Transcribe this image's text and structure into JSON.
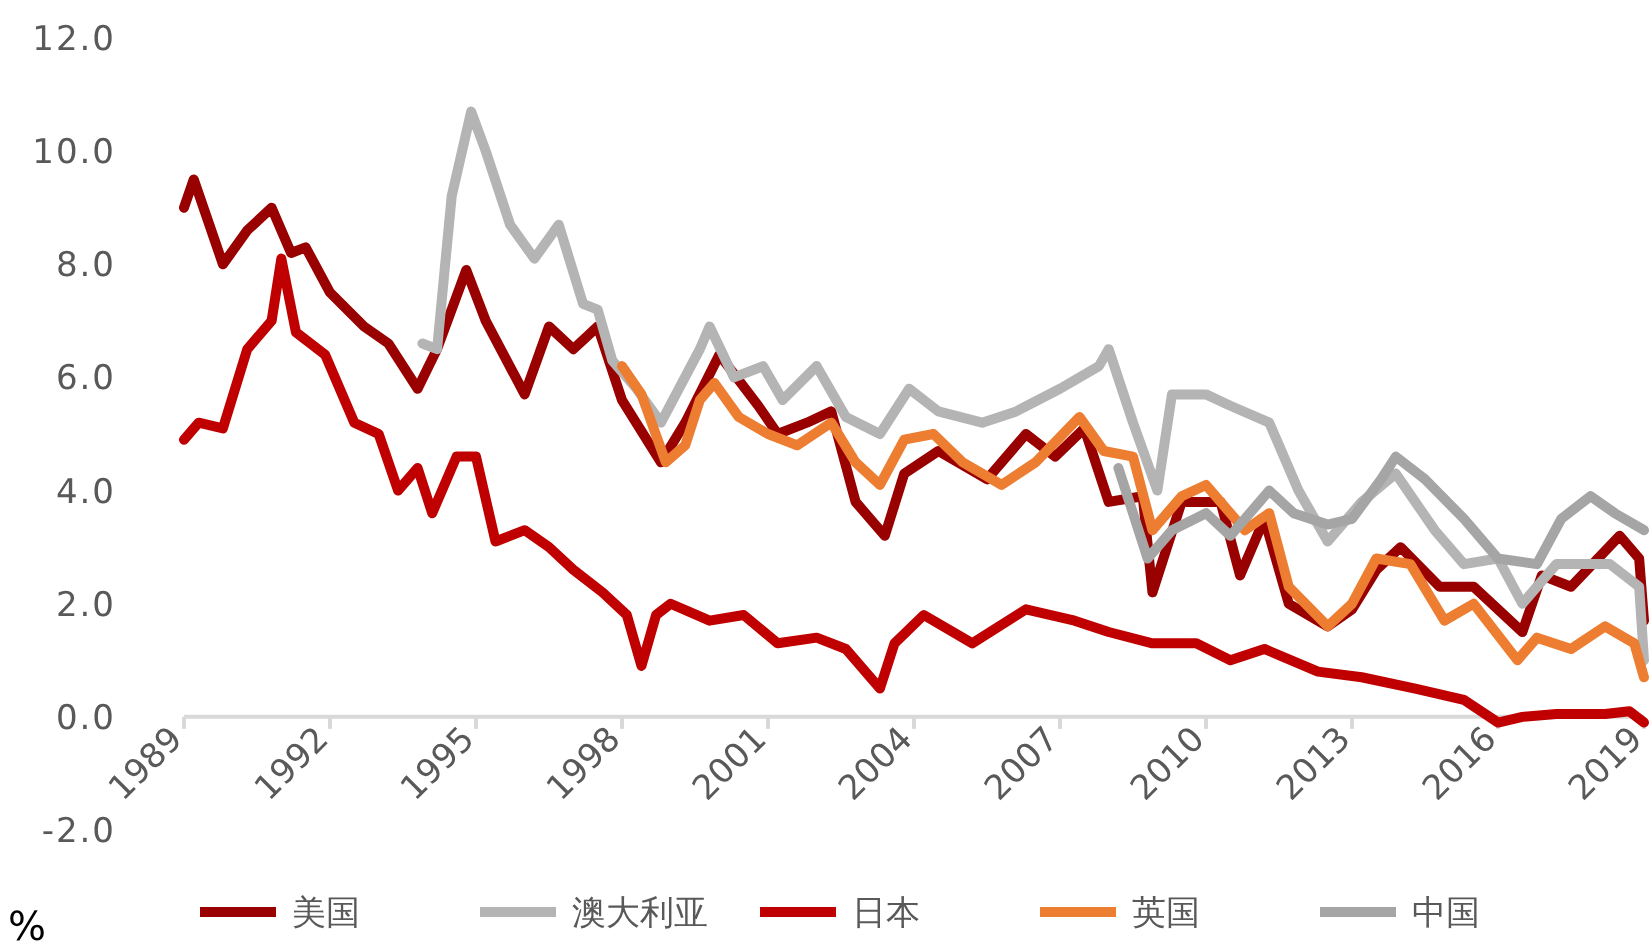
{
  "chart_data": {
    "type": "line",
    "ylabel": "%",
    "xlim": [
      1989,
      2019
    ],
    "ylim": [
      -2,
      12
    ],
    "xticks": [
      1989,
      1992,
      1995,
      1998,
      2001,
      2004,
      2007,
      2010,
      2013,
      2016,
      2019
    ],
    "yticks": [
      {
        "value": -2,
        "label": "-2.0"
      },
      {
        "value": 0,
        "label": "0.0"
      },
      {
        "value": 2,
        "label": "2.0"
      },
      {
        "value": 4,
        "label": "4.0"
      },
      {
        "value": 6,
        "label": "6.0"
      },
      {
        "value": 8,
        "label": "8.0"
      },
      {
        "value": 10,
        "label": "10.0"
      },
      {
        "value": 12,
        "label": "12.0"
      }
    ],
    "grid": false,
    "legend": "bottom",
    "marker": "none",
    "line_style": "solid",
    "series": [
      {
        "name": "美国",
        "color": "#990000",
        "x": [
          1989,
          1989.2,
          1989.8,
          1990.3,
          1990.8,
          1991.2,
          1991.5,
          1992,
          1992.7,
          1993.2,
          1993.8,
          1994.2,
          1994.8,
          1995.2,
          1996,
          1996.5,
          1997,
          1997.5,
          1998,
          1998.8,
          1999.3,
          2000,
          2000.8,
          2001.2,
          2001.8,
          2002.3,
          2002.8,
          2003.4,
          2003.8,
          2004.5,
          2005.5,
          2006.3,
          2006.9,
          2007.5,
          2008,
          2008.7,
          2008.9,
          2009.5,
          2010.3,
          2010.7,
          2011.2,
          2011.7,
          2012.5,
          2013,
          2013.5,
          2014,
          2014.8,
          2015.5,
          2016.5,
          2016.9,
          2017.5,
          2018.5,
          2018.9,
          2019
        ],
        "values": [
          9.0,
          9.5,
          8.0,
          8.6,
          9.0,
          8.2,
          8.3,
          7.5,
          6.9,
          6.6,
          5.8,
          6.5,
          7.9,
          7.0,
          5.7,
          6.9,
          6.5,
          6.9,
          5.6,
          4.5,
          5.2,
          6.4,
          5.5,
          5.0,
          5.2,
          5.4,
          3.8,
          3.2,
          4.3,
          4.7,
          4.2,
          5.0,
          4.6,
          5.1,
          3.8,
          3.9,
          2.2,
          3.8,
          3.8,
          2.5,
          3.5,
          2.0,
          1.6,
          1.9,
          2.6,
          3.0,
          2.3,
          2.3,
          1.5,
          2.5,
          2.3,
          3.2,
          2.8,
          1.7
        ]
      },
      {
        "name": "澳大利亚",
        "color": "#b4b4b4",
        "x": [
          1993.9,
          1994.2,
          1994.5,
          1994.9,
          1995.2,
          1995.7,
          1996.2,
          1996.7,
          1997.2,
          1997.5,
          1997.8,
          1998.3,
          1998.8,
          1999.6,
          1999.8,
          2000.3,
          2000.9,
          2001.3,
          2002,
          2002.6,
          2003.3,
          2003.9,
          2004.5,
          2005.4,
          2006.1,
          2007,
          2007.8,
          2008,
          2008.5,
          2009,
          2009.3,
          2010,
          2010.5,
          2011.3,
          2011.9,
          2012.5,
          2013.2,
          2013.9,
          2014.7,
          2015.3,
          2016,
          2016.5,
          2017.2,
          2018.3,
          2018.9,
          2019
        ],
        "values": [
          6.6,
          6.5,
          9.2,
          10.7,
          10.0,
          8.7,
          8.1,
          8.7,
          7.3,
          7.2,
          6.3,
          5.8,
          5.2,
          6.5,
          6.9,
          6.0,
          6.2,
          5.6,
          6.2,
          5.3,
          5.0,
          5.8,
          5.4,
          5.2,
          5.4,
          5.8,
          6.2,
          6.5,
          5.2,
          4.0,
          5.7,
          5.7,
          5.5,
          5.2,
          4.0,
          3.1,
          3.8,
          4.3,
          3.3,
          2.7,
          2.8,
          2.0,
          2.7,
          2.7,
          2.3,
          1.0
        ]
      },
      {
        "name": "日本",
        "color": "#c00000",
        "x": [
          1989,
          1989.3,
          1989.8,
          1990.3,
          1990.8,
          1991,
          1991.3,
          1991.9,
          1992.5,
          1993,
          1993.4,
          1993.8,
          1994.1,
          1994.6,
          1995,
          1995.4,
          1996,
          1996.5,
          1997,
          1997.6,
          1998.1,
          1998.4,
          1998.7,
          1999,
          1999.8,
          2000.5,
          2001.2,
          2002,
          2002.6,
          2003.3,
          2003.6,
          2004.2,
          2005.2,
          2006.3,
          2007.3,
          2008,
          2008.9,
          2009.8,
          2010.5,
          2011.2,
          2012.3,
          2013.2,
          2014.3,
          2015.3,
          2016,
          2016.5,
          2017.2,
          2018.2,
          2018.7,
          2019
        ],
        "values": [
          4.9,
          5.2,
          5.1,
          6.5,
          7.0,
          8.1,
          6.8,
          6.4,
          5.2,
          5.0,
          4.0,
          4.4,
          3.6,
          4.6,
          4.6,
          3.1,
          3.3,
          3.0,
          2.6,
          2.2,
          1.8,
          0.9,
          1.8,
          2.0,
          1.7,
          1.8,
          1.3,
          1.4,
          1.2,
          0.5,
          1.3,
          1.8,
          1.3,
          1.9,
          1.7,
          1.5,
          1.3,
          1.3,
          1.0,
          1.2,
          0.8,
          0.7,
          0.5,
          0.3,
          -0.1,
          0.0,
          0.05,
          0.05,
          0.1,
          -0.1
        ]
      },
      {
        "name": "英国",
        "color": "#ed7d31",
        "x": [
          1998,
          1998.4,
          1998.9,
          1999.3,
          1999.6,
          1999.9,
          2000.4,
          2001,
          2001.6,
          2002.3,
          2002.8,
          2003.3,
          2003.8,
          2004.4,
          2005,
          2005.8,
          2006.5,
          2007.4,
          2007.9,
          2008.5,
          2008.9,
          2009.5,
          2010,
          2010.8,
          2011.3,
          2011.7,
          2012.5,
          2013,
          2013.5,
          2014.2,
          2014.9,
          2015.5,
          2016.4,
          2016.8,
          2017.5,
          2018.2,
          2018.8,
          2019
        ],
        "values": [
          6.2,
          5.7,
          4.5,
          4.8,
          5.6,
          5.9,
          5.3,
          5.0,
          4.8,
          5.2,
          4.5,
          4.1,
          4.9,
          5.0,
          4.5,
          4.1,
          4.5,
          5.3,
          4.7,
          4.6,
          3.3,
          3.9,
          4.1,
          3.3,
          3.6,
          2.3,
          1.6,
          2.0,
          2.8,
          2.7,
          1.7,
          2.0,
          1.0,
          1.4,
          1.2,
          1.6,
          1.3,
          0.7
        ]
      },
      {
        "name": "中国",
        "color": "#a5a5a5",
        "x": [
          2008.2,
          2008.8,
          2009.3,
          2010,
          2010.5,
          2011.3,
          2011.8,
          2012.5,
          2013,
          2013.6,
          2013.9,
          2014.5,
          2015.3,
          2016,
          2016.8,
          2017.3,
          2017.9,
          2018.4,
          2019
        ],
        "values": [
          4.4,
          2.8,
          3.3,
          3.6,
          3.2,
          4.0,
          3.6,
          3.4,
          3.5,
          4.2,
          4.6,
          4.2,
          3.5,
          2.8,
          2.7,
          3.5,
          3.9,
          3.6,
          3.3
        ]
      }
    ]
  }
}
